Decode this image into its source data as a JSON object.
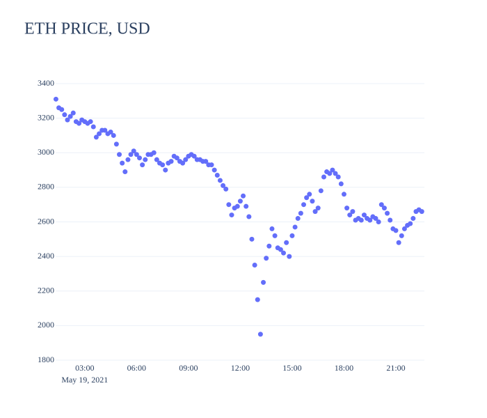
{
  "chart_data": {
    "type": "scatter",
    "title": "ETH PRICE, USD",
    "x": [
      "2021-05-19 01:20",
      "2021-05-19 01:30",
      "2021-05-19 01:40",
      "2021-05-19 01:50",
      "2021-05-19 02:00",
      "2021-05-19 02:10",
      "2021-05-19 02:20",
      "2021-05-19 02:30",
      "2021-05-19 02:40",
      "2021-05-19 02:50",
      "2021-05-19 03:00",
      "2021-05-19 03:10",
      "2021-05-19 03:20",
      "2021-05-19 03:30",
      "2021-05-19 03:40",
      "2021-05-19 03:50",
      "2021-05-19 04:00",
      "2021-05-19 04:10",
      "2021-05-19 04:20",
      "2021-05-19 04:30",
      "2021-05-19 04:40",
      "2021-05-19 04:50",
      "2021-05-19 05:00",
      "2021-05-19 05:10",
      "2021-05-19 05:20",
      "2021-05-19 05:30",
      "2021-05-19 05:40",
      "2021-05-19 05:50",
      "2021-05-19 06:00",
      "2021-05-19 06:10",
      "2021-05-19 06:20",
      "2021-05-19 06:30",
      "2021-05-19 06:40",
      "2021-05-19 06:50",
      "2021-05-19 07:00",
      "2021-05-19 07:10",
      "2021-05-19 07:20",
      "2021-05-19 07:30",
      "2021-05-19 07:40",
      "2021-05-19 07:50",
      "2021-05-19 08:00",
      "2021-05-19 08:10",
      "2021-05-19 08:20",
      "2021-05-19 08:30",
      "2021-05-19 08:40",
      "2021-05-19 08:50",
      "2021-05-19 09:00",
      "2021-05-19 09:10",
      "2021-05-19 09:20",
      "2021-05-19 09:30",
      "2021-05-19 09:40",
      "2021-05-19 09:50",
      "2021-05-19 10:00",
      "2021-05-19 10:10",
      "2021-05-19 10:20",
      "2021-05-19 10:30",
      "2021-05-19 10:40",
      "2021-05-19 10:50",
      "2021-05-19 11:00",
      "2021-05-19 11:10",
      "2021-05-19 11:20",
      "2021-05-19 11:30",
      "2021-05-19 11:40",
      "2021-05-19 11:50",
      "2021-05-19 12:00",
      "2021-05-19 12:10",
      "2021-05-19 12:20",
      "2021-05-19 12:30",
      "2021-05-19 12:40",
      "2021-05-19 12:50",
      "2021-05-19 13:00",
      "2021-05-19 13:10",
      "2021-05-19 13:20",
      "2021-05-19 13:30",
      "2021-05-19 13:40",
      "2021-05-19 13:50",
      "2021-05-19 14:00",
      "2021-05-19 14:10",
      "2021-05-19 14:20",
      "2021-05-19 14:30",
      "2021-05-19 14:40",
      "2021-05-19 14:50",
      "2021-05-19 15:00",
      "2021-05-19 15:10",
      "2021-05-19 15:20",
      "2021-05-19 15:30",
      "2021-05-19 15:40",
      "2021-05-19 15:50",
      "2021-05-19 16:00",
      "2021-05-19 16:10",
      "2021-05-19 16:20",
      "2021-05-19 16:30",
      "2021-05-19 16:40",
      "2021-05-19 16:50",
      "2021-05-19 17:00",
      "2021-05-19 17:10",
      "2021-05-19 17:20",
      "2021-05-19 17:30",
      "2021-05-19 17:40",
      "2021-05-19 17:50",
      "2021-05-19 18:00",
      "2021-05-19 18:10",
      "2021-05-19 18:20",
      "2021-05-19 18:30",
      "2021-05-19 18:40",
      "2021-05-19 18:50",
      "2021-05-19 19:00",
      "2021-05-19 19:10",
      "2021-05-19 19:20",
      "2021-05-19 19:30",
      "2021-05-19 19:40",
      "2021-05-19 19:50",
      "2021-05-19 20:00",
      "2021-05-19 20:10",
      "2021-05-19 20:20",
      "2021-05-19 20:30",
      "2021-05-19 20:40",
      "2021-05-19 20:50",
      "2021-05-19 21:00",
      "2021-05-19 21:10",
      "2021-05-19 21:20",
      "2021-05-19 21:30",
      "2021-05-19 21:40",
      "2021-05-19 21:50",
      "2021-05-19 22:00",
      "2021-05-19 22:10",
      "2021-05-19 22:20",
      "2021-05-19 22:30"
    ],
    "values": [
      3310,
      3260,
      3250,
      3220,
      3190,
      3210,
      3230,
      3180,
      3170,
      3190,
      3180,
      3170,
      3180,
      3150,
      3090,
      3110,
      3130,
      3130,
      3110,
      3120,
      3100,
      3050,
      2990,
      2940,
      2890,
      2960,
      2990,
      3010,
      2990,
      2970,
      2930,
      2960,
      2990,
      2990,
      3000,
      2960,
      2940,
      2930,
      2900,
      2940,
      2950,
      2980,
      2970,
      2950,
      2940,
      2960,
      2980,
      2990,
      2980,
      2960,
      2960,
      2950,
      2950,
      2930,
      2930,
      2900,
      2870,
      2840,
      2810,
      2790,
      2700,
      2640,
      2680,
      2690,
      2720,
      2750,
      2690,
      2630,
      2500,
      2350,
      2150,
      1950,
      2250,
      2390,
      2460,
      2560,
      2520,
      2450,
      2440,
      2420,
      2480,
      2400,
      2520,
      2570,
      2620,
      2650,
      2700,
      2740,
      2760,
      2720,
      2660,
      2680,
      2780,
      2860,
      2890,
      2880,
      2900,
      2880,
      2860,
      2820,
      2760,
      2680,
      2640,
      2660,
      2610,
      2620,
      2610,
      2640,
      2620,
      2610,
      2630,
      2620,
      2600,
      2700,
      2680,
      2650,
      2610,
      2560,
      2550,
      2480,
      2520,
      2560,
      2580,
      2590,
      2620,
      2660,
      2670,
      2660
    ],
    "color": "#636efa",
    "xlim": [
      "2021-05-19 01:19",
      "2021-05-19 22:39"
    ],
    "xticks": [
      {
        "value": "2021-05-19 03:00",
        "label": "03:00",
        "sublabel": "May 19, 2021"
      },
      {
        "value": "2021-05-19 06:00",
        "label": "06:00"
      },
      {
        "value": "2021-05-19 09:00",
        "label": "09:00"
      },
      {
        "value": "2021-05-19 12:00",
        "label": "12:00"
      },
      {
        "value": "2021-05-19 15:00",
        "label": "15:00"
      },
      {
        "value": "2021-05-19 18:00",
        "label": "18:00"
      },
      {
        "value": "2021-05-19 21:00",
        "label": "21:00"
      }
    ],
    "ylim": [
      1800,
      3400
    ],
    "yticks": [
      1800,
      2000,
      2200,
      2400,
      2600,
      2800,
      3000,
      3200,
      3400
    ],
    "grid": true
  }
}
